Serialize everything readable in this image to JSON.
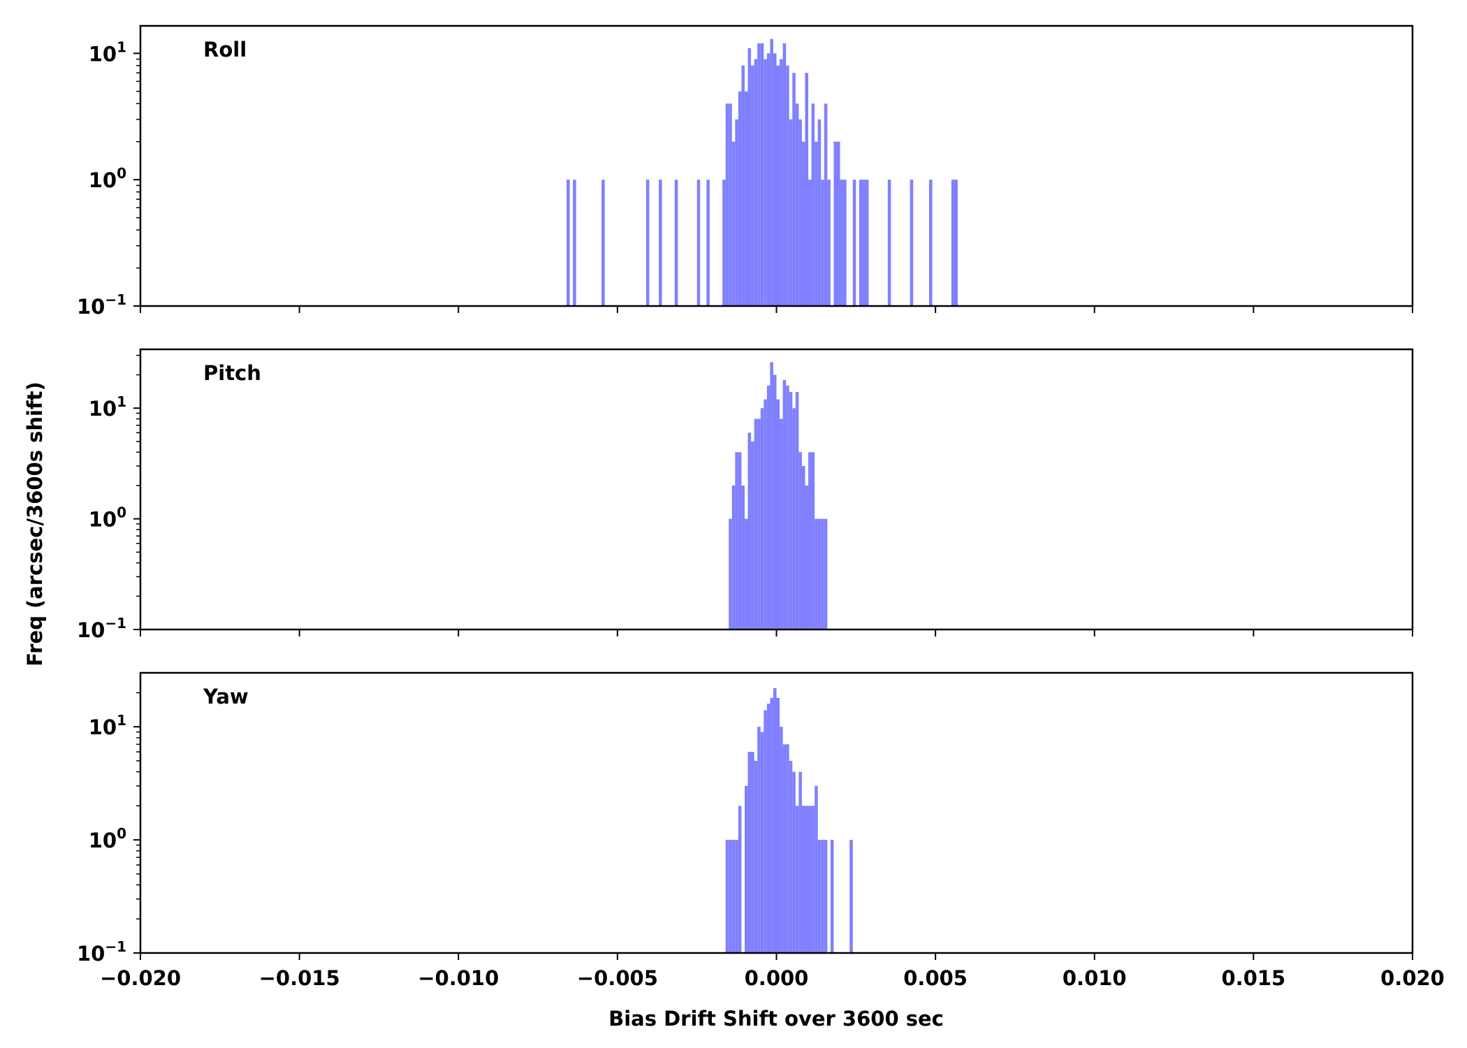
{
  "chart_data": [
    {
      "type": "bar",
      "label": "Roll",
      "yscale": "log",
      "ylim": [
        0.1,
        16.5
      ],
      "y_ticks": [
        {
          "value": 0.1,
          "base": "10",
          "exp": "−1"
        },
        {
          "value": 1,
          "base": "10",
          "exp": "0"
        },
        {
          "value": 10,
          "base": "10",
          "exp": "1"
        }
      ],
      "bin_width": 0.0001,
      "x": [
        -0.0066,
        -0.0064,
        -0.0055,
        -0.0041,
        -0.0037,
        -0.0032,
        -0.0025,
        -0.0022,
        -0.0017,
        -0.0016,
        -0.0015,
        -0.0014,
        -0.0013,
        -0.0012,
        -0.0011,
        -0.001,
        -0.0009,
        -0.0008,
        -0.0007,
        -0.0006,
        -0.0005,
        -0.0004,
        -0.0003,
        -0.0002,
        -0.0001,
        0.0,
        0.0001,
        0.0002,
        0.0003,
        0.0004,
        0.0005,
        0.0006,
        0.0007,
        0.0008,
        0.0009,
        0.001,
        0.0011,
        0.0012,
        0.0013,
        0.0014,
        0.0015,
        0.0016,
        0.0018,
        0.0019,
        0.002,
        0.0021,
        0.0024,
        0.0026,
        0.0027,
        0.0028,
        0.0035,
        0.0042,
        0.0048,
        0.0055,
        0.0056
      ],
      "values": [
        1,
        1,
        1,
        1,
        1,
        1,
        1,
        1,
        1,
        4,
        4,
        2,
        3,
        5,
        8,
        5,
        11,
        8,
        9,
        12,
        12,
        9,
        10,
        13,
        10,
        8,
        9,
        12,
        8,
        3,
        7,
        4,
        3,
        2,
        7,
        1,
        4,
        2,
        3,
        1,
        4,
        1,
        2,
        2,
        1,
        1,
        1,
        1,
        1,
        1,
        1,
        1,
        1,
        1,
        1
      ]
    },
    {
      "type": "bar",
      "label": "Pitch",
      "yscale": "log",
      "ylim": [
        0.1,
        34
      ],
      "y_ticks": [
        {
          "value": 0.1,
          "base": "10",
          "exp": "−1"
        },
        {
          "value": 1,
          "base": "10",
          "exp": "0"
        },
        {
          "value": 10,
          "base": "10",
          "exp": "1"
        }
      ],
      "bin_width": 0.0001,
      "x": [
        -0.0015,
        -0.0014,
        -0.0013,
        -0.0012,
        -0.0011,
        -0.001,
        -0.0009,
        -0.0008,
        -0.0007,
        -0.0006,
        -0.0005,
        -0.0004,
        -0.0003,
        -0.0002,
        -0.0001,
        0.0,
        0.0001,
        0.0002,
        0.0003,
        0.0004,
        0.0005,
        0.0006,
        0.0007,
        0.0008,
        0.0009,
        0.001,
        0.0011,
        0.0012,
        0.0013,
        0.0014,
        0.0015
      ],
      "values": [
        1,
        2,
        4,
        4,
        2,
        1,
        6,
        5,
        8,
        8,
        10,
        12,
        16,
        26,
        20,
        12,
        8,
        18,
        16,
        14,
        10,
        14,
        4,
        3,
        2,
        4,
        4,
        1,
        1,
        1,
        1
      ]
    },
    {
      "type": "bar",
      "label": "Yaw",
      "yscale": "log",
      "ylim": [
        0.1,
        30
      ],
      "y_ticks": [
        {
          "value": 0.1,
          "base": "10",
          "exp": "−1"
        },
        {
          "value": 1,
          "base": "10",
          "exp": "0"
        },
        {
          "value": 10,
          "base": "10",
          "exp": "1"
        }
      ],
      "bin_width": 0.0001,
      "x": [
        -0.0016,
        -0.0015,
        -0.0014,
        -0.0013,
        -0.0012,
        -0.001,
        -0.0009,
        -0.0008,
        -0.0007,
        -0.0006,
        -0.0005,
        -0.0004,
        -0.0003,
        -0.0002,
        -0.0001,
        0.0,
        0.0001,
        0.0002,
        0.0003,
        0.0004,
        0.0005,
        0.0006,
        0.0007,
        0.0008,
        0.0009,
        0.001,
        0.0011,
        0.0012,
        0.0013,
        0.0014,
        0.0015,
        0.0017,
        0.0023
      ],
      "values": [
        1,
        1,
        1,
        1,
        2,
        3,
        6,
        6,
        5,
        10,
        9,
        14,
        16,
        18,
        22,
        18,
        10,
        7,
        7,
        5,
        4,
        2,
        4,
        2,
        2,
        2,
        2,
        3,
        1,
        1,
        1,
        1,
        1
      ]
    }
  ],
  "shared": {
    "xlim": [
      -0.02,
      0.02
    ],
    "x_ticks": [
      -0.02,
      -0.015,
      -0.01,
      -0.005,
      0.0,
      0.005,
      0.01,
      0.015,
      0.02
    ],
    "x_tick_labels": [
      "−0.020",
      "−0.015",
      "−0.010",
      "−0.005",
      "0.000",
      "0.005",
      "0.010",
      "0.015",
      "0.020"
    ],
    "xlabel": "Bias Drift Shift over 3600 sec",
    "ylabel": "Freq (arcsec/3600s shift)",
    "bar_color": "#8080ff",
    "grid": false
  }
}
